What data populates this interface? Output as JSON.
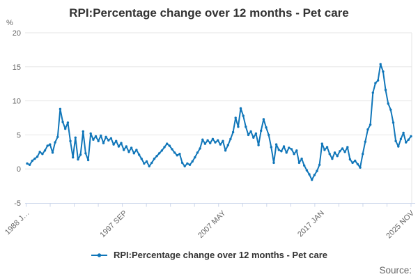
{
  "title": "RPI:Percentage change over 12 months - Pet care",
  "y_axis": {
    "unit_label": "%",
    "ticks": [
      20,
      15,
      10,
      5,
      0,
      -5
    ]
  },
  "x_axis": {
    "labels": [
      {
        "text": "1988 J…",
        "pos": 0
      },
      {
        "text": "1997 SEP",
        "pos": 0.254
      },
      {
        "text": "2007 MAY",
        "pos": 0.51
      },
      {
        "text": "2017 JAN",
        "pos": 0.766
      },
      {
        "text": "2025 NOV",
        "pos": 1
      }
    ],
    "minor_tick_count": 17
  },
  "legend": {
    "label": "RPI:Percentage change over 12 months - Pet care"
  },
  "source_label": "Source:",
  "colors": {
    "series": "#1076b9",
    "grid": "#e6e6e6",
    "axis": "#ccd6eb",
    "text_muted": "#666666",
    "title_text": "#333333"
  },
  "chart_data": {
    "type": "line",
    "title": "RPI:Percentage change over 12 months - Pet care",
    "xlabel": "",
    "ylabel": "%",
    "ylim": [
      -5,
      20
    ],
    "grid": "horizontal",
    "legend_position": "bottom",
    "x_start": "1988 JAN",
    "x_end": "2025 NOV",
    "interval": "quarterly",
    "x_tick_labels": [
      "1988 J…",
      "1997 SEP",
      "2007 MAY",
      "2017 JAN",
      "2025 NOV"
    ],
    "series_name": "RPI:Percentage change over 12 months - Pet care",
    "values": [
      0.8,
      0.6,
      1.2,
      1.5,
      1.8,
      2.5,
      2.2,
      2.7,
      3.4,
      3.6,
      2.4,
      3.9,
      4.7,
      8.8,
      6.9,
      5.9,
      6.8,
      4.1,
      1.7,
      4.6,
      1.4,
      2.1,
      5.5,
      2.3,
      1.3,
      5.2,
      4.3,
      4.8,
      4.1,
      4.9,
      3.8,
      4.7,
      4.2,
      4.5,
      3.6,
      4.1,
      3.3,
      3.8,
      2.8,
      3.3,
      2.5,
      3.1,
      2.3,
      2.8,
      2.1,
      1.5,
      0.8,
      1.1,
      0.4,
      0.9,
      1.5,
      1.9,
      2.3,
      2.7,
      3.2,
      3.7,
      3.4,
      2.9,
      2.4,
      2.0,
      2.2,
      0.9,
      0.4,
      0.8,
      0.6,
      1.1,
      1.7,
      2.4,
      3.0,
      4.3,
      3.7,
      4.2,
      3.8,
      4.4,
      3.9,
      4.2,
      3.6,
      4.1,
      2.7,
      3.5,
      4.4,
      5.4,
      7.5,
      6.2,
      8.9,
      7.8,
      6.2,
      5.0,
      5.5,
      4.6,
      5.2,
      3.5,
      5.6,
      7.3,
      6.1,
      5.0,
      3.2,
      0.9,
      3.6,
      2.8,
      2.6,
      3.3,
      2.4,
      3.1,
      2.9,
      2.2,
      2.7,
      0.9,
      1.5,
      0.5,
      -0.2,
      -0.8,
      -1.6,
      -0.9,
      -0.3,
      0.6,
      3.7,
      2.8,
      3.2,
      2.2,
      1.5,
      2.4,
      1.9,
      2.6,
      3.0,
      2.5,
      3.2,
      1.4,
      0.9,
      1.2,
      0.7,
      0.2,
      2.2,
      4.0,
      5.8,
      6.5,
      11.2,
      12.6,
      13.0,
      15.4,
      14.3,
      11.6,
      9.6,
      8.7,
      6.8,
      4.1,
      3.3,
      4.4,
      5.3,
      3.9,
      4.3,
      4.8
    ]
  }
}
